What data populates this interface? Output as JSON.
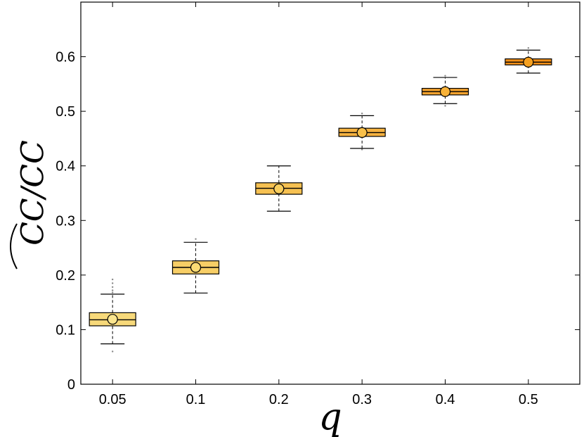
{
  "chart_data": {
    "type": "box",
    "title": "",
    "xlabel": "q",
    "ylabel": "CC/CC",
    "ylabel_hat_over": "CC",
    "categories": [
      "0.05",
      "0.1",
      "0.2",
      "0.3",
      "0.4",
      "0.5"
    ],
    "yticks": [
      "0",
      "0.1",
      "0.2",
      "0.3",
      "0.4",
      "0.5",
      "0.6"
    ],
    "ylim": [
      0,
      0.7
    ],
    "grid": false,
    "legend": "none",
    "boxes": [
      {
        "q": "0.05",
        "whisker_low": 0.074,
        "q1": 0.107,
        "median": 0.118,
        "q3": 0.131,
        "whisker_high": 0.165,
        "mean": 0.119,
        "outliers": [
          0.06,
          0.168,
          0.172,
          0.178,
          0.185,
          0.192
        ],
        "fill": "#f7d97a",
        "marker": "#fbe58e"
      },
      {
        "q": "0.1",
        "whisker_low": 0.167,
        "q1": 0.202,
        "median": 0.214,
        "q3": 0.226,
        "whisker_high": 0.26,
        "mean": 0.214,
        "outliers": [
          0.266
        ],
        "fill": "#f7ce66",
        "marker": "#fadb74"
      },
      {
        "q": "0.2",
        "whisker_low": 0.317,
        "q1": 0.348,
        "median": 0.359,
        "q3": 0.369,
        "whisker_high": 0.4,
        "mean": 0.358,
        "outliers": [],
        "fill": "#f6c152",
        "marker": "#f9ce5e"
      },
      {
        "q": "0.3",
        "whisker_low": 0.432,
        "q1": 0.454,
        "median": 0.461,
        "q3": 0.469,
        "whisker_high": 0.492,
        "mean": 0.461,
        "outliers": [
          0.496,
          0.43
        ],
        "fill": "#f6b240",
        "marker": "#f9c04a"
      },
      {
        "q": "0.4",
        "whisker_low": 0.514,
        "q1": 0.53,
        "median": 0.536,
        "q3": 0.542,
        "whisker_high": 0.562,
        "mean": 0.536,
        "outliers": [
          0.51,
          0.565
        ],
        "fill": "#f5a32e",
        "marker": "#f8b238"
      },
      {
        "q": "0.5",
        "whisker_low": 0.57,
        "q1": 0.585,
        "median": 0.59,
        "q3": 0.596,
        "whisker_high": 0.612,
        "mean": 0.59,
        "outliers": [
          0.616
        ],
        "fill": "#f39018",
        "marker": "#f5a020"
      }
    ]
  }
}
